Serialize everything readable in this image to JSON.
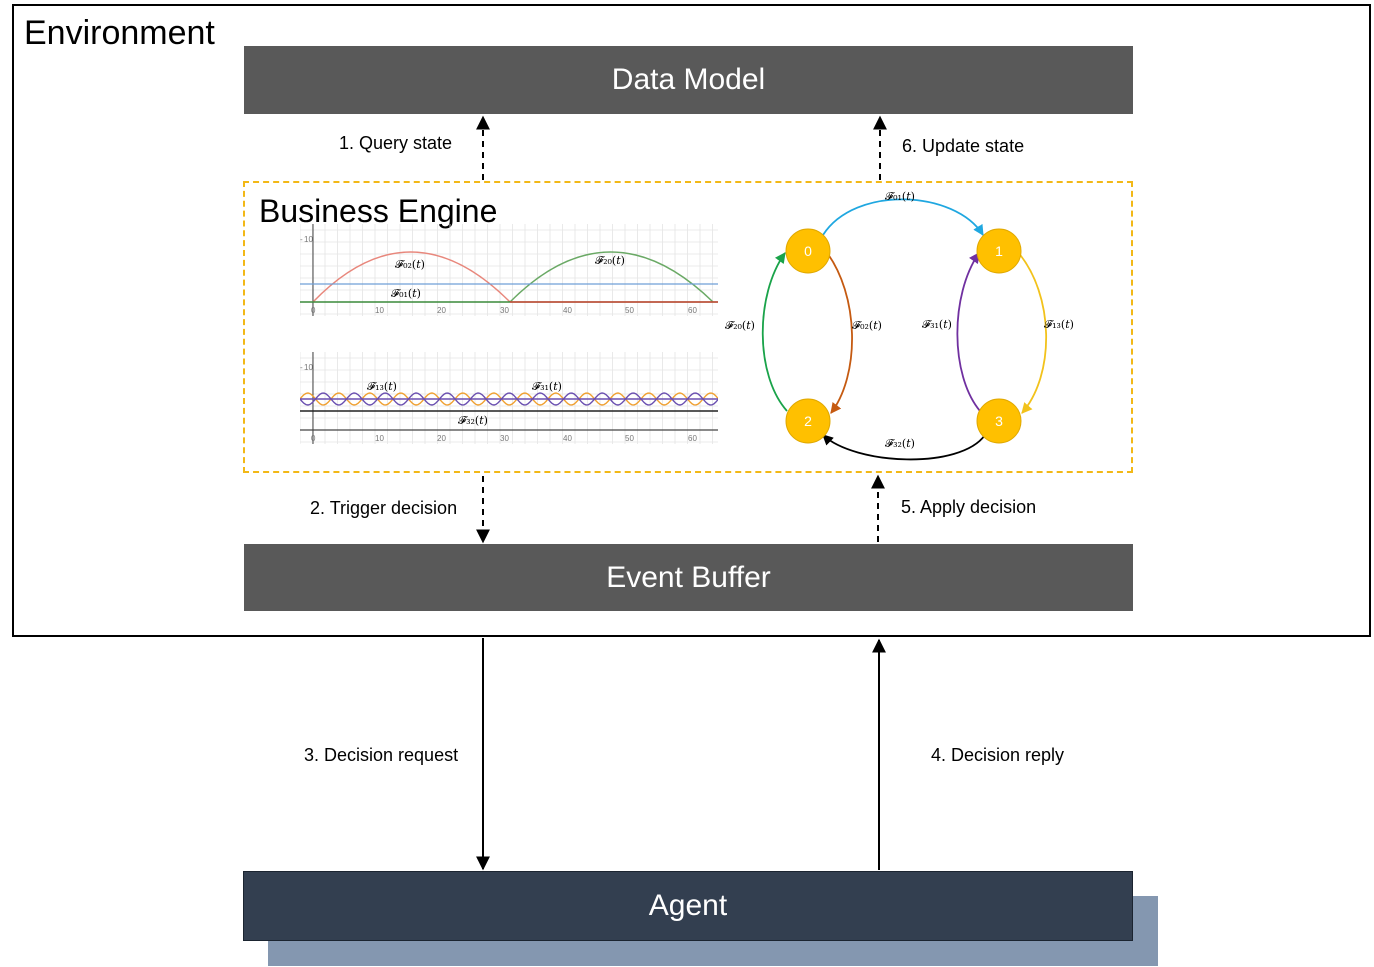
{
  "environment": {
    "title": "Environment"
  },
  "data_model": {
    "label": "Data Model"
  },
  "business_engine": {
    "title": "Business Engine"
  },
  "event_buffer": {
    "label": "Event Buffer"
  },
  "agent": {
    "label": "Agent"
  },
  "steps": {
    "s1": "1. Query state",
    "s2": "2. Trigger decision",
    "s3": "3. Decision request",
    "s4": "4. Decision reply",
    "s5": "5. Apply decision",
    "s6": "6. Update state"
  },
  "charts": {
    "top": {
      "x_ticks": [
        "0",
        "10",
        "20",
        "30",
        "40",
        "50",
        "60"
      ],
      "y_tick": "10",
      "labels": {
        "f02": "𝓕₀₂(𝑡)",
        "f20": "𝓕₂₀(𝑡)",
        "f01": "𝓕₀₁(𝑡)"
      }
    },
    "bottom": {
      "x_ticks": [
        "0",
        "10",
        "20",
        "30",
        "40",
        "50",
        "60"
      ],
      "y_tick": "10",
      "labels": {
        "f13": "𝓕₁₃(𝑡)",
        "f31": "𝓕₃₁(𝑡)",
        "f32": "𝓕₃₂(𝑡)"
      }
    }
  },
  "graph": {
    "nodes": {
      "n0": "0",
      "n1": "1",
      "n2": "2",
      "n3": "3"
    },
    "edges": {
      "f01": "𝓕₀₁(𝑡)",
      "f02": "𝓕₀₂(𝑡)",
      "f20": "𝓕₂₀(𝑡)",
      "f13": "𝓕₁₃(𝑡)",
      "f31": "𝓕₃₁(𝑡)",
      "f32": "𝓕₃₂(𝑡)"
    },
    "colors": {
      "node_fill": "#ffc000",
      "node_stroke": "#e0a800",
      "f01": "#1fa7e0",
      "f02": "#c55a11",
      "f20": "#1aa34a",
      "f13": "#f2c21b",
      "f31": "#7030a0",
      "f32": "#000000"
    }
  },
  "colors": {
    "bar": "#595959",
    "agent": "#333f50",
    "agent_shadow": "#8497b0",
    "engine_border": "#f2b817"
  }
}
